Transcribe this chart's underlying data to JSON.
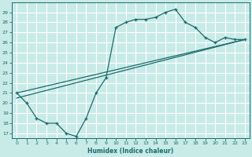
{
  "xlabel": "Humidex (Indice chaleur)",
  "bg_color": "#c8ebe8",
  "grid_color": "#ffffff",
  "line_color": "#1a6b6b",
  "xlim": [
    -0.5,
    23.5
  ],
  "ylim": [
    16.5,
    30.0
  ],
  "xticks": [
    0,
    1,
    2,
    3,
    4,
    5,
    6,
    7,
    8,
    9,
    10,
    11,
    12,
    13,
    14,
    15,
    16,
    17,
    18,
    19,
    20,
    21,
    22,
    23
  ],
  "yticks": [
    17,
    18,
    19,
    20,
    21,
    22,
    23,
    24,
    25,
    26,
    27,
    28,
    29
  ],
  "curve1_x": [
    0,
    1,
    2,
    3,
    4,
    5,
    6,
    7,
    8,
    9,
    10,
    11,
    12,
    13,
    14,
    15,
    16,
    17,
    18,
    19,
    20,
    21,
    22,
    23
  ],
  "curve1_y": [
    21.0,
    20.0,
    18.5,
    18.0,
    18.0,
    17.0,
    16.7,
    18.5,
    21.0,
    22.5,
    27.5,
    28.0,
    28.3,
    28.3,
    28.5,
    29.0,
    29.3,
    28.0,
    27.5,
    26.5,
    26.0,
    26.5,
    26.3,
    26.3
  ],
  "curve2_x": [
    0,
    23
  ],
  "curve2_y": [
    21.0,
    26.3
  ],
  "curve3_x": [
    0,
    23
  ],
  "curve3_y": [
    20.5,
    26.3
  ]
}
